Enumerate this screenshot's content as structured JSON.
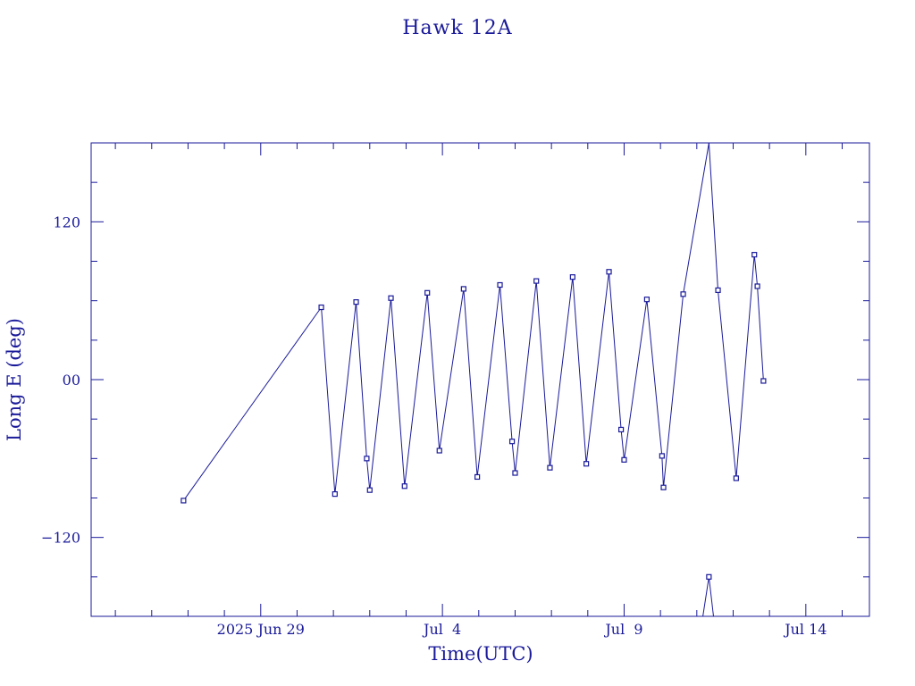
{
  "chart_data": {
    "type": "line",
    "title": "Hawk 12A",
    "xlabel": "Time(UTC)",
    "ylabel": "Long E (deg)",
    "xlim": [
      "2025-06-24T08:00",
      "2025-07-15T18:00"
    ],
    "ylim": [
      -180,
      180
    ],
    "xticks": [
      {
        "value": "2025-06-29T00:00",
        "label": "2025 Jun 29"
      },
      {
        "value": "2025-07-04T00:00",
        "label": "Jul  4"
      },
      {
        "value": "2025-07-09T00:00",
        "label": "Jul  9"
      },
      {
        "value": "2025-07-14T00:00",
        "label": "Jul 14"
      }
    ],
    "yticks": [
      {
        "value": 120,
        "label": "120"
      },
      {
        "value": 0,
        "label": "00"
      },
      {
        "value": -120,
        "label": "−120"
      }
    ],
    "grid": false,
    "line_color": "#1a1a9a",
    "segments": [
      [
        {
          "x": "2025-06-26T21:00",
          "y": -92
        },
        {
          "x": "2025-06-30T16:00",
          "y": 55
        },
        {
          "x": "2025-07-01T01:00",
          "y": -87
        },
        {
          "x": "2025-07-01T15:00",
          "y": 59
        },
        {
          "x": "2025-07-01T22:00",
          "y": -60
        },
        {
          "x": "2025-07-02T00:00",
          "y": -84
        },
        {
          "x": "2025-07-02T14:00",
          "y": 62
        },
        {
          "x": "2025-07-02T23:00",
          "y": -81
        },
        {
          "x": "2025-07-03T14:00",
          "y": 66
        },
        {
          "x": "2025-07-03T22:00",
          "y": -54
        },
        {
          "x": "2025-07-04T14:00",
          "y": 69
        },
        {
          "x": "2025-07-04T23:00",
          "y": -74
        },
        {
          "x": "2025-07-05T14:00",
          "y": 72
        },
        {
          "x": "2025-07-05T22:00",
          "y": -47
        },
        {
          "x": "2025-07-06T00:00",
          "y": -71
        },
        {
          "x": "2025-07-06T14:00",
          "y": 75
        },
        {
          "x": "2025-07-06T23:00",
          "y": -67
        },
        {
          "x": "2025-07-07T14:00",
          "y": 78
        },
        {
          "x": "2025-07-07T23:00",
          "y": -64
        },
        {
          "x": "2025-07-08T14:00",
          "y": 82
        },
        {
          "x": "2025-07-08T22:00",
          "y": -38
        },
        {
          "x": "2025-07-09T00:00",
          "y": -61
        },
        {
          "x": "2025-07-09T15:00",
          "y": 61
        },
        {
          "x": "2025-07-10T01:00",
          "y": -58
        },
        {
          "x": "2025-07-10T02:00",
          "y": -82
        },
        {
          "x": "2025-07-10T15:00",
          "y": 65
        },
        {
          "x": "2025-07-11T08:00",
          "y": 180
        }
      ],
      [
        {
          "x": "2025-07-11T04:00",
          "y": -180
        },
        {
          "x": "2025-07-11T08:00",
          "y": -150
        },
        {
          "x": "2025-07-11T11:00",
          "y": -180
        }
      ],
      [
        {
          "x": "2025-07-11T08:00",
          "y": 180
        },
        {
          "x": "2025-07-11T14:00",
          "y": 68
        },
        {
          "x": "2025-07-12T02:00",
          "y": -75
        },
        {
          "x": "2025-07-12T14:00",
          "y": 95
        },
        {
          "x": "2025-07-12T16:00",
          "y": 71
        },
        {
          "x": "2025-07-12T20:00",
          "y": -1
        }
      ]
    ]
  }
}
